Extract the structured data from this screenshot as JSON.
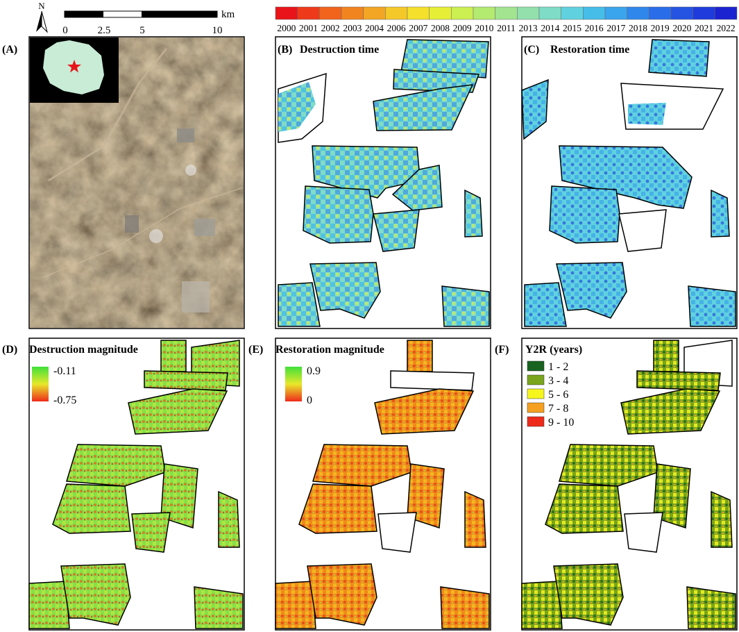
{
  "header": {
    "north_label": "N",
    "scale_ticks": [
      "0",
      "2.5",
      "5",
      "10"
    ],
    "scale_unit": "km"
  },
  "colorbar": {
    "years": [
      "2000",
      "2001",
      "2002",
      "2003",
      "2004",
      "2006",
      "2007",
      "2008",
      "2009",
      "2010",
      "2011",
      "2013",
      "2014",
      "2015",
      "2016",
      "2017",
      "2018",
      "2019",
      "2020",
      "2021",
      "2022"
    ],
    "colors": [
      "#e8141a",
      "#ee3a1a",
      "#f2631c",
      "#f2841f",
      "#f3a524",
      "#f5c82a",
      "#f5e02c",
      "#e6ef36",
      "#ccef52",
      "#b3ea70",
      "#a3e490",
      "#93e0ad",
      "#7fdcc6",
      "#60d2df",
      "#46bde9",
      "#3aa4ec",
      "#2f87ec",
      "#2a6de8",
      "#2553e2",
      "#1f3bdb",
      "#1b22cf"
    ]
  },
  "panels": {
    "a": {
      "letter": "(A)"
    },
    "b": {
      "letter": "(B)",
      "title": "Destruction time"
    },
    "c": {
      "letter": "(C)",
      "title": "Restoration time"
    },
    "d": {
      "letter": "(D)",
      "title": "Destruction magnitude",
      "legend_high": "-0.11",
      "legend_low": "-0.75"
    },
    "e": {
      "letter": "(E)",
      "title": "Restoration magnitude",
      "legend_high": "0.9",
      "legend_low": "0"
    },
    "f": {
      "letter": "(F)",
      "title": "Y2R (years)",
      "classes": [
        {
          "label": "1 - 2",
          "color": "#17631f"
        },
        {
          "label": "3 - 4",
          "color": "#7aa51c"
        },
        {
          "label": "5 - 6",
          "color": "#f6f61e"
        },
        {
          "label": "7 - 8",
          "color": "#f5a020"
        },
        {
          "label": "9 - 10",
          "color": "#ee2b1b"
        }
      ]
    }
  }
}
